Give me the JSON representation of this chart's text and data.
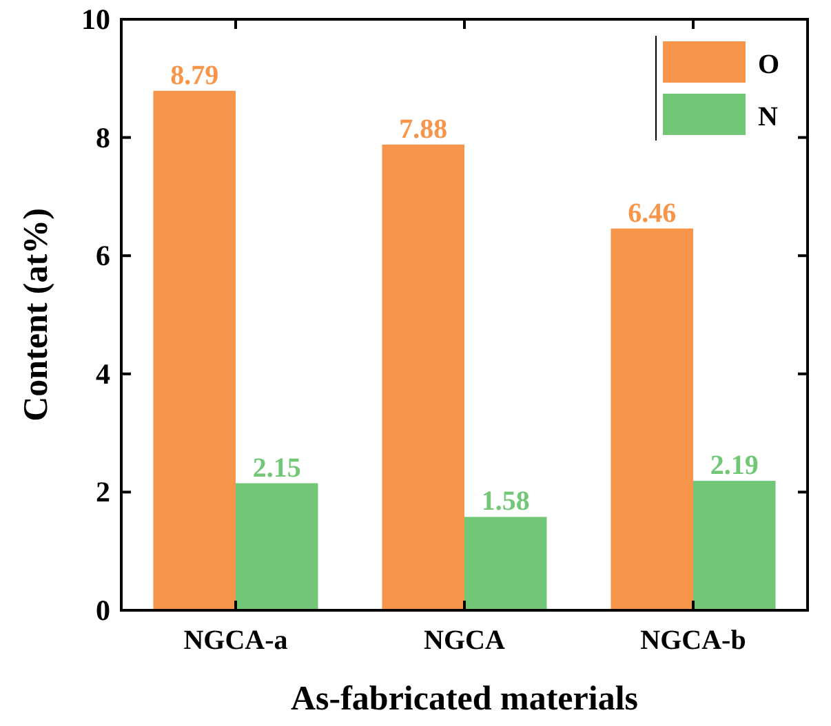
{
  "chart_data": {
    "type": "bar",
    "xlabel": "As-fabricated materials",
    "ylabel": "Content (at%)",
    "categories": [
      "NGCA-a",
      "NGCA",
      "NGCA-b"
    ],
    "series": [
      {
        "name": "O",
        "color": "#f7954a",
        "values": [
          8.79,
          7.88,
          6.46
        ]
      },
      {
        "name": "N",
        "color": "#72c777",
        "values": [
          2.15,
          1.58,
          2.19
        ]
      }
    ],
    "ylim": [
      0,
      10
    ],
    "yticks": [
      0,
      2,
      4,
      6,
      8,
      10
    ],
    "grid": false,
    "legend": "top right",
    "data_labels": true
  }
}
